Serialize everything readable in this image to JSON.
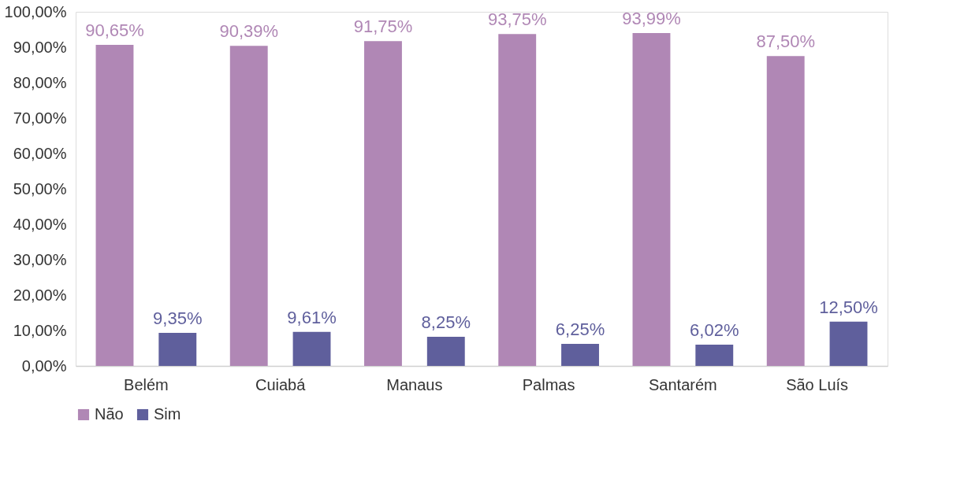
{
  "chart_data": {
    "type": "bar",
    "categories": [
      "Belém",
      "Cuiabá",
      "Manaus",
      "Palmas",
      "Santarém",
      "São Luís"
    ],
    "series": [
      {
        "name": "Não",
        "color": "#b087b5",
        "values": [
          90.65,
          90.39,
          91.75,
          93.75,
          93.99,
          87.5
        ],
        "value_labels": [
          "90,65%",
          "90,39%",
          "91,75%",
          "93,75%",
          "93,99%",
          "87,50%"
        ]
      },
      {
        "name": "Sim",
        "color": "#5f5f9c",
        "values": [
          9.35,
          9.61,
          8.25,
          6.25,
          6.02,
          12.5
        ],
        "value_labels": [
          "9,35%",
          "9,61%",
          "8,25%",
          "6,25%",
          "6,02%",
          "12,50%"
        ]
      }
    ],
    "ylim": [
      0,
      100
    ],
    "yticks": [
      {
        "value": 0,
        "label": "0,00%"
      },
      {
        "value": 10,
        "label": "10,00%"
      },
      {
        "value": 20,
        "label": "20,00%"
      },
      {
        "value": 30,
        "label": "30,00%"
      },
      {
        "value": 40,
        "label": "40,00%"
      },
      {
        "value": 50,
        "label": "50,00%"
      },
      {
        "value": 60,
        "label": "60,00%"
      },
      {
        "value": 70,
        "label": "70,00%"
      },
      {
        "value": 80,
        "label": "80,00%"
      },
      {
        "value": 90,
        "label": "90,00%"
      },
      {
        "value": 100,
        "label": "100,00%"
      }
    ],
    "legend": "bottom",
    "grid": false
  }
}
